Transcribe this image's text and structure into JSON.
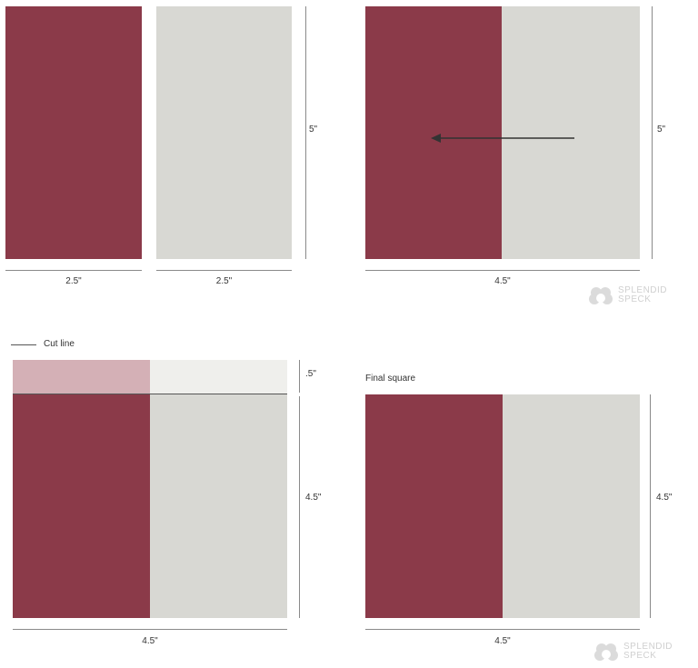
{
  "colors": {
    "maroon": "#8b3a49",
    "gray": "#d8d8d3",
    "maroon_light": "#d4b0b6",
    "gray_light": "#efefec",
    "line": "#8a8a8a"
  },
  "panel1": {
    "height_label": "5\"",
    "left_width_label": "2.5\"",
    "right_width_label": "2.5\""
  },
  "panel2": {
    "height_label": "5\"",
    "width_label": "4.5\"",
    "arrow_icon": "arrow-left-icon"
  },
  "panel3": {
    "legend_label": "Cut line",
    "trim_label": ".5\"",
    "height_label": "4.5\"",
    "width_label": "4.5\""
  },
  "panel4": {
    "title": "Final square",
    "height_label": "4.5\"",
    "width_label": "4.5\""
  },
  "watermark": {
    "line1": "SPLENDID",
    "line2": "SPECK"
  }
}
